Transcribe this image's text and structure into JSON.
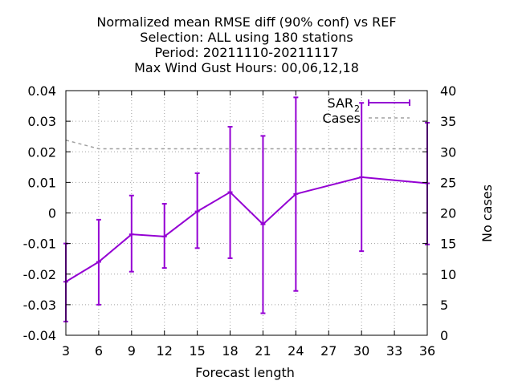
{
  "chart_data": {
    "type": "line",
    "title_lines": [
      "Normalized mean RMSE diff (90% conf) vs REF",
      "Selection: ALL using   180 stations",
      "Period: 20211110-20211117",
      "Max Wind Gust   Hours:  00,06,12,18"
    ],
    "xlabel": "Forecast length",
    "ylabel": "",
    "y2label": "No cases",
    "xlim": [
      3,
      36
    ],
    "ylim": [
      -0.04,
      0.04
    ],
    "y2lim": [
      0,
      40
    ],
    "grid": true,
    "legend_position": "top-right",
    "x_ticks": [
      3,
      6,
      9,
      12,
      15,
      18,
      21,
      24,
      27,
      30,
      33,
      36
    ],
    "x_tick_labels": [
      "3",
      "6",
      "9",
      "12",
      "15",
      "18",
      "21",
      "24",
      "27",
      "30",
      "33",
      "36"
    ],
    "y_ticks": [
      -0.04,
      -0.03,
      -0.02,
      -0.01,
      0,
      0.01,
      0.02,
      0.03,
      0.04
    ],
    "y_tick_labels": [
      "-0.04",
      "-0.03",
      "-0.02",
      "-0.01",
      "0",
      "0.01",
      "0.02",
      "0.03",
      "0.04"
    ],
    "y2_ticks": [
      0,
      5,
      10,
      15,
      20,
      25,
      30,
      35,
      40
    ],
    "y2_tick_labels": [
      "0",
      "5",
      "10",
      "15",
      "20",
      "25",
      "30",
      "35",
      "40"
    ],
    "series": [
      {
        "name": "SAR",
        "name_subscript": "2",
        "color": "#9400d3",
        "axis": "left",
        "style": "line-errorbars",
        "x": [
          3,
          6,
          9,
          12,
          15,
          18,
          21,
          24,
          30,
          36
        ],
        "values": [
          -0.0225,
          -0.016,
          -0.007,
          -0.0077,
          0.0005,
          0.0068,
          -0.0037,
          0.0062,
          0.0117,
          0.0097
        ],
        "lower": [
          -0.0355,
          -0.03,
          -0.0192,
          -0.018,
          -0.0115,
          -0.0148,
          -0.0328,
          -0.0255,
          -0.0125,
          -0.0103
        ],
        "upper": [
          -0.01,
          -0.0022,
          0.0057,
          0.003,
          0.013,
          0.0282,
          0.0252,
          0.0378,
          0.036,
          0.0295
        ]
      },
      {
        "name": "Cases",
        "color": "#a0a0a0",
        "axis": "right",
        "style": "dashed",
        "x": [
          3,
          6,
          9,
          12,
          15,
          18,
          21,
          24,
          27,
          30,
          33,
          36
        ],
        "values": [
          31.9,
          30.5,
          30.5,
          30.5,
          30.5,
          30.5,
          30.5,
          30.5,
          30.5,
          30.5,
          30.5,
          30.5
        ]
      }
    ]
  }
}
